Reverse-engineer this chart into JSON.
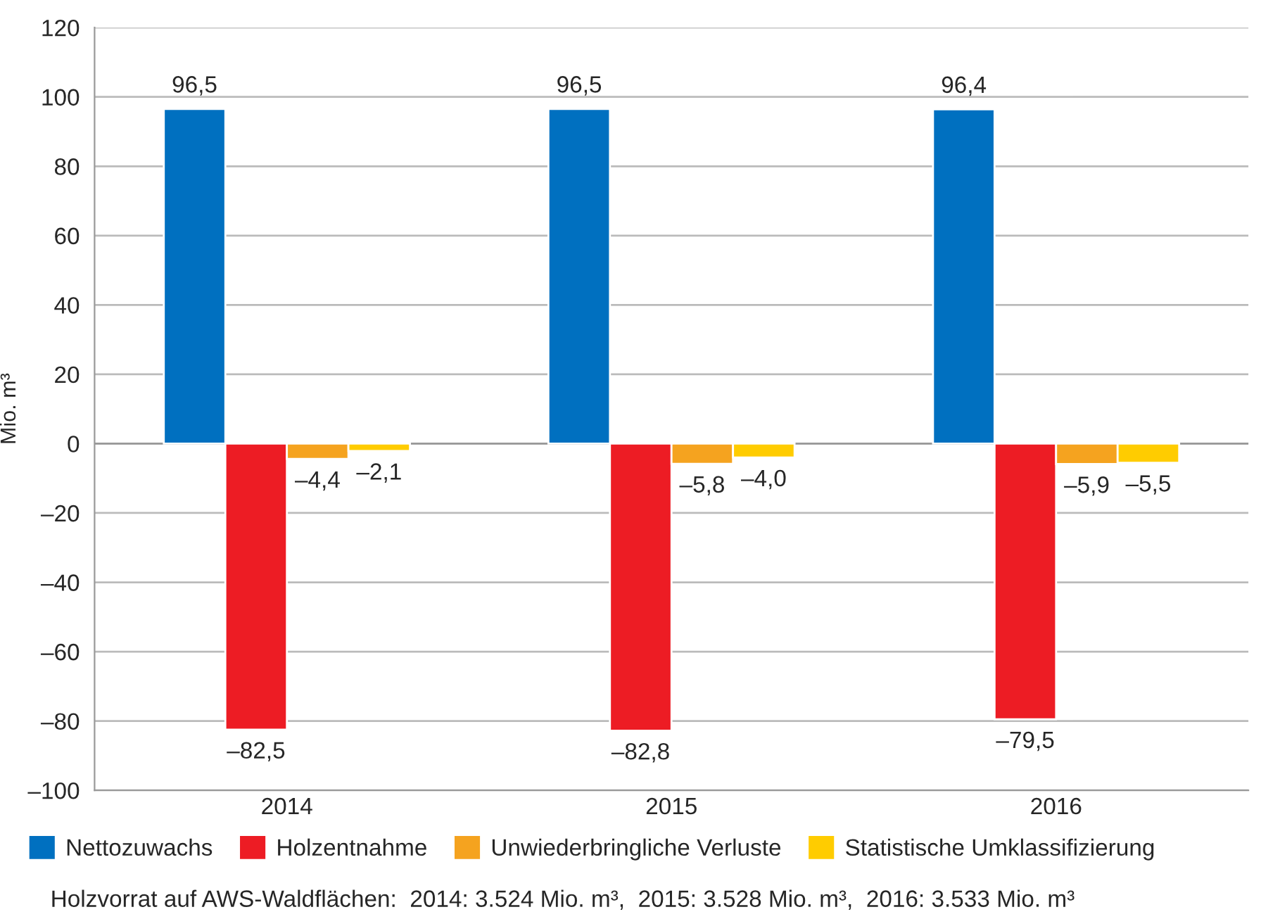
{
  "chart_data": {
    "type": "bar",
    "categories": [
      "2014",
      "2015",
      "2016"
    ],
    "ylabel": "Mio. m³",
    "series": [
      {
        "name": "Nettozuwachs",
        "color": "#0070c0",
        "values": [
          96.5,
          96.5,
          96.4
        ],
        "value_labels": [
          "96,5",
          "96,5",
          "96,4"
        ]
      },
      {
        "name": "Holzentnahme",
        "color": "#ed1c24",
        "values": [
          -82.5,
          -82.8,
          -79.5
        ],
        "value_labels": [
          "–82,5",
          "–82,8",
          "–79,5"
        ]
      },
      {
        "name": "Unwiederbringliche Verluste",
        "color": "#f5a31f",
        "values": [
          -4.4,
          -5.8,
          -5.9
        ],
        "value_labels": [
          "–4,4",
          "–5,8",
          "–5,9"
        ]
      },
      {
        "name": "Statistische Umklassifizierung",
        "color": "#ffcc00",
        "values": [
          -2.1,
          -4.0,
          -5.5
        ],
        "value_labels": [
          "–2,1",
          "–4,0",
          "–5,5"
        ]
      }
    ],
    "ylim": [
      -100,
      120
    ],
    "yticks": [
      {
        "value": -100,
        "label": "–100"
      },
      {
        "value": -80,
        "label": "–80"
      },
      {
        "value": -60,
        "label": "–60"
      },
      {
        "value": -40,
        "label": "–40"
      },
      {
        "value": -20,
        "label": "–20"
      },
      0,
      20,
      40,
      60,
      80,
      100,
      120
    ],
    "grid": "y",
    "legend": "bottom",
    "annotations": [
      "Holzvorrat auf AWS-Waldflächen:  2014: 3.524 Mio. m³,  2015: 3.528 Mio. m³,  2016: 3.533 Mio. m³"
    ]
  }
}
